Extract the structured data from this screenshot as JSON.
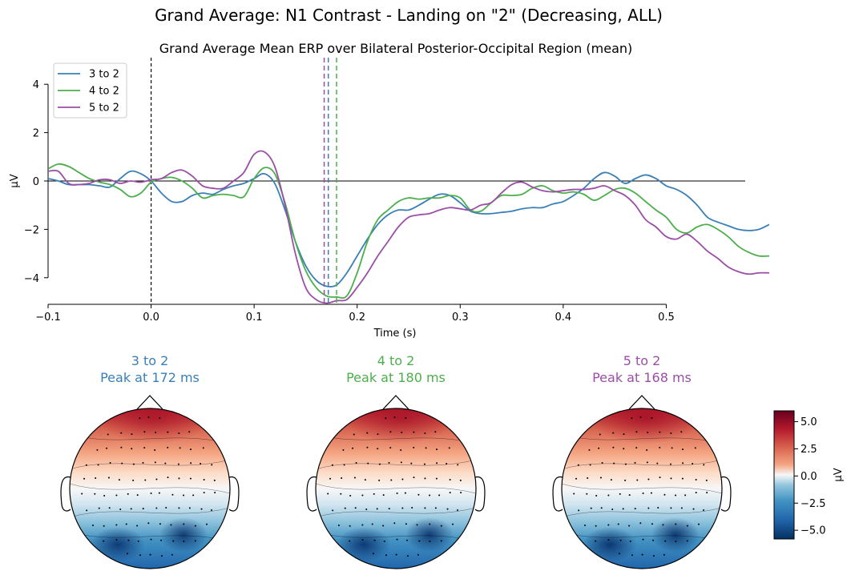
{
  "figure": {
    "suptitle": "Grand Average: N1 Contrast - Landing on \"2\" (Decreasing, ALL)"
  },
  "chart_data": [
    {
      "type": "line",
      "title": "Grand Average Mean ERP over Bilateral Posterior-Occipital Region (mean)",
      "xlabel": "Time (s)",
      "ylabel": "µV",
      "xlim": [
        -0.1,
        0.6
      ],
      "ylim": [
        -5.1,
        5.1
      ],
      "x_ticks": [
        -0.1,
        0.0,
        0.1,
        0.2,
        0.3,
        0.4,
        0.5
      ],
      "x_tick_labels": [
        "−0.1",
        "0.0",
        "0.1",
        "0.2",
        "0.3",
        "0.4",
        "0.5"
      ],
      "y_ticks": [
        -4,
        -2,
        0,
        2,
        4
      ],
      "y_tick_labels": [
        "−4",
        "−2",
        "0",
        "2",
        "4"
      ],
      "legend_position": "top-left",
      "grid": false,
      "zero_line": true,
      "stimulus_onset": 0.0,
      "series": [
        {
          "name": "3 to 2",
          "color": "#3a7fb8",
          "peak_latency": 0.172,
          "points": [
            [
              -0.1,
              0.1
            ],
            [
              -0.09,
              0.0
            ],
            [
              -0.08,
              -0.15
            ],
            [
              -0.07,
              -0.15
            ],
            [
              -0.06,
              -0.15
            ],
            [
              -0.05,
              -0.2
            ],
            [
              -0.04,
              -0.25
            ],
            [
              -0.03,
              0.1
            ],
            [
              -0.02,
              0.4
            ],
            [
              -0.01,
              0.3
            ],
            [
              0.0,
              0.0
            ],
            [
              0.01,
              -0.5
            ],
            [
              0.02,
              -0.85
            ],
            [
              0.03,
              -0.85
            ],
            [
              0.04,
              -0.6
            ],
            [
              0.05,
              -0.5
            ],
            [
              0.06,
              -0.55
            ],
            [
              0.07,
              -0.35
            ],
            [
              0.08,
              -0.2
            ],
            [
              0.09,
              -0.1
            ],
            [
              0.1,
              0.1
            ],
            [
              0.11,
              0.3
            ],
            [
              0.12,
              -0.1
            ],
            [
              0.13,
              -1.2
            ],
            [
              0.14,
              -2.5
            ],
            [
              0.15,
              -3.5
            ],
            [
              0.16,
              -4.1
            ],
            [
              0.17,
              -4.35
            ],
            [
              0.18,
              -4.3
            ],
            [
              0.19,
              -3.8
            ],
            [
              0.2,
              -3.1
            ],
            [
              0.21,
              -2.4
            ],
            [
              0.22,
              -1.8
            ],
            [
              0.23,
              -1.4
            ],
            [
              0.24,
              -1.2
            ],
            [
              0.25,
              -1.2
            ],
            [
              0.26,
              -1.0
            ],
            [
              0.27,
              -0.75
            ],
            [
              0.28,
              -0.55
            ],
            [
              0.29,
              -0.6
            ],
            [
              0.3,
              -0.9
            ],
            [
              0.31,
              -1.25
            ],
            [
              0.32,
              -1.35
            ],
            [
              0.33,
              -1.35
            ],
            [
              0.34,
              -1.3
            ],
            [
              0.35,
              -1.25
            ],
            [
              0.36,
              -1.15
            ],
            [
              0.37,
              -1.1
            ],
            [
              0.38,
              -1.1
            ],
            [
              0.39,
              -0.95
            ],
            [
              0.4,
              -0.85
            ],
            [
              0.41,
              -0.6
            ],
            [
              0.42,
              -0.3
            ],
            [
              0.43,
              0.1
            ],
            [
              0.44,
              0.35
            ],
            [
              0.45,
              0.2
            ],
            [
              0.46,
              -0.1
            ],
            [
              0.47,
              0.1
            ],
            [
              0.48,
              0.25
            ],
            [
              0.49,
              0.1
            ],
            [
              0.5,
              -0.2
            ],
            [
              0.51,
              -0.35
            ],
            [
              0.52,
              -0.6
            ],
            [
              0.53,
              -1.0
            ],
            [
              0.54,
              -1.5
            ],
            [
              0.55,
              -1.7
            ],
            [
              0.56,
              -1.85
            ],
            [
              0.57,
              -2.0
            ],
            [
              0.58,
              -2.05
            ],
            [
              0.59,
              -2.0
            ],
            [
              0.6,
              -1.8
            ]
          ]
        },
        {
          "name": "4 to 2",
          "color": "#4caf4c",
          "peak_latency": 0.18,
          "points": [
            [
              -0.1,
              0.5
            ],
            [
              -0.09,
              0.7
            ],
            [
              -0.08,
              0.6
            ],
            [
              -0.07,
              0.35
            ],
            [
              -0.06,
              0.1
            ],
            [
              -0.05,
              -0.05
            ],
            [
              -0.04,
              -0.15
            ],
            [
              -0.03,
              -0.35
            ],
            [
              -0.02,
              -0.65
            ],
            [
              -0.01,
              -0.5
            ],
            [
              0.0,
              -0.05
            ],
            [
              0.01,
              0.1
            ],
            [
              0.02,
              0.15
            ],
            [
              0.03,
              0.0
            ],
            [
              0.04,
              -0.3
            ],
            [
              0.05,
              -0.7
            ],
            [
              0.06,
              -0.6
            ],
            [
              0.07,
              -0.55
            ],
            [
              0.08,
              -0.6
            ],
            [
              0.09,
              -0.65
            ],
            [
              0.1,
              0.1
            ],
            [
              0.11,
              0.55
            ],
            [
              0.12,
              0.3
            ],
            [
              0.13,
              -0.9
            ],
            [
              0.14,
              -2.5
            ],
            [
              0.15,
              -3.7
            ],
            [
              0.16,
              -4.4
            ],
            [
              0.17,
              -4.75
            ],
            [
              0.18,
              -4.8
            ],
            [
              0.19,
              -4.75
            ],
            [
              0.2,
              -3.8
            ],
            [
              0.21,
              -2.5
            ],
            [
              0.22,
              -1.6
            ],
            [
              0.23,
              -1.2
            ],
            [
              0.24,
              -0.85
            ],
            [
              0.25,
              -0.7
            ],
            [
              0.26,
              -0.75
            ],
            [
              0.27,
              -0.7
            ],
            [
              0.28,
              -0.7
            ],
            [
              0.29,
              -0.6
            ],
            [
              0.3,
              -0.7
            ],
            [
              0.31,
              -1.2
            ],
            [
              0.32,
              -1.25
            ],
            [
              0.33,
              -0.9
            ],
            [
              0.34,
              -0.6
            ],
            [
              0.35,
              -0.6
            ],
            [
              0.36,
              -0.55
            ],
            [
              0.37,
              -0.3
            ],
            [
              0.38,
              -0.2
            ],
            [
              0.39,
              -0.4
            ],
            [
              0.4,
              -0.5
            ],
            [
              0.41,
              -0.45
            ],
            [
              0.42,
              -0.55
            ],
            [
              0.43,
              -0.8
            ],
            [
              0.44,
              -0.6
            ],
            [
              0.45,
              -0.35
            ],
            [
              0.46,
              -0.3
            ],
            [
              0.47,
              -0.5
            ],
            [
              0.48,
              -0.85
            ],
            [
              0.49,
              -1.2
            ],
            [
              0.5,
              -1.5
            ],
            [
              0.51,
              -2.0
            ],
            [
              0.52,
              -2.15
            ],
            [
              0.53,
              -1.9
            ],
            [
              0.54,
              -1.8
            ],
            [
              0.55,
              -2.0
            ],
            [
              0.56,
              -2.3
            ],
            [
              0.57,
              -2.7
            ],
            [
              0.58,
              -2.95
            ],
            [
              0.59,
              -3.1
            ],
            [
              0.6,
              -3.1
            ]
          ]
        },
        {
          "name": "5 to 2",
          "color": "#9b4ea6",
          "peak_latency": 0.168,
          "points": [
            [
              -0.1,
              0.4
            ],
            [
              -0.09,
              0.4
            ],
            [
              -0.08,
              -0.1
            ],
            [
              -0.07,
              -0.15
            ],
            [
              -0.06,
              -0.1
            ],
            [
              -0.05,
              0.05
            ],
            [
              -0.04,
              0.05
            ],
            [
              -0.03,
              -0.1
            ],
            [
              -0.02,
              0.0
            ],
            [
              -0.01,
              -0.05
            ],
            [
              0.0,
              0.05
            ],
            [
              0.01,
              0.1
            ],
            [
              0.02,
              0.35
            ],
            [
              0.03,
              0.45
            ],
            [
              0.04,
              0.2
            ],
            [
              0.05,
              -0.2
            ],
            [
              0.06,
              -0.3
            ],
            [
              0.07,
              -0.3
            ],
            [
              0.08,
              0.0
            ],
            [
              0.09,
              0.35
            ],
            [
              0.1,
              1.1
            ],
            [
              0.11,
              1.2
            ],
            [
              0.12,
              0.6
            ],
            [
              0.13,
              -1.0
            ],
            [
              0.14,
              -3.0
            ],
            [
              0.15,
              -4.4
            ],
            [
              0.16,
              -4.9
            ],
            [
              0.17,
              -5.05
            ],
            [
              0.18,
              -4.95
            ],
            [
              0.19,
              -4.9
            ],
            [
              0.2,
              -4.4
            ],
            [
              0.21,
              -3.8
            ],
            [
              0.22,
              -3.1
            ],
            [
              0.23,
              -2.5
            ],
            [
              0.24,
              -1.9
            ],
            [
              0.25,
              -1.5
            ],
            [
              0.26,
              -1.4
            ],
            [
              0.27,
              -1.35
            ],
            [
              0.28,
              -1.2
            ],
            [
              0.29,
              -1.1
            ],
            [
              0.3,
              -1.15
            ],
            [
              0.31,
              -1.2
            ],
            [
              0.32,
              -1.0
            ],
            [
              0.33,
              -0.9
            ],
            [
              0.34,
              -0.5
            ],
            [
              0.35,
              -0.15
            ],
            [
              0.36,
              -0.05
            ],
            [
              0.37,
              -0.25
            ],
            [
              0.38,
              -0.4
            ],
            [
              0.39,
              -0.45
            ],
            [
              0.4,
              -0.4
            ],
            [
              0.41,
              -0.35
            ],
            [
              0.42,
              -0.35
            ],
            [
              0.43,
              -0.3
            ],
            [
              0.44,
              -0.2
            ],
            [
              0.45,
              -0.4
            ],
            [
              0.46,
              -0.6
            ],
            [
              0.47,
              -1.0
            ],
            [
              0.48,
              -1.6
            ],
            [
              0.49,
              -1.9
            ],
            [
              0.5,
              -2.3
            ],
            [
              0.51,
              -2.4
            ],
            [
              0.52,
              -2.2
            ],
            [
              0.53,
              -2.5
            ],
            [
              0.54,
              -2.9
            ],
            [
              0.55,
              -3.2
            ],
            [
              0.56,
              -3.55
            ],
            [
              0.57,
              -3.75
            ],
            [
              0.58,
              -3.85
            ],
            [
              0.59,
              -3.8
            ],
            [
              0.6,
              -3.8
            ]
          ]
        }
      ]
    },
    {
      "type": "heatmap",
      "subtype": "topomap",
      "unit": "µV",
      "colorbar_label": "µV",
      "colorbar_range": [
        -5.8,
        6.0
      ],
      "colorbar_ticks": [
        -5.0,
        -2.5,
        0.0,
        2.5,
        5.0
      ],
      "colorbar_tick_labels": [
        "−5.0",
        "−2.5",
        "0.0",
        "2.5",
        "5.0"
      ],
      "colormap": "RdBu_r",
      "maps": [
        {
          "name": "3 to 2",
          "title_line1": "3 to 2",
          "title_line2": "Peak at 172 ms",
          "color": "#3a7fb8",
          "frontal": 4.8,
          "occipital": -5.5
        },
        {
          "name": "4 to 2",
          "title_line1": "4 to 2",
          "title_line2": "Peak at 180 ms",
          "color": "#4caf4c",
          "frontal": 5.0,
          "occipital": -5.6
        },
        {
          "name": "5 to 2",
          "title_line1": "5 to 2",
          "title_line2": "Peak at 168 ms",
          "color": "#9b4ea6",
          "frontal": 5.5,
          "occipital": -5.8
        }
      ]
    }
  ]
}
